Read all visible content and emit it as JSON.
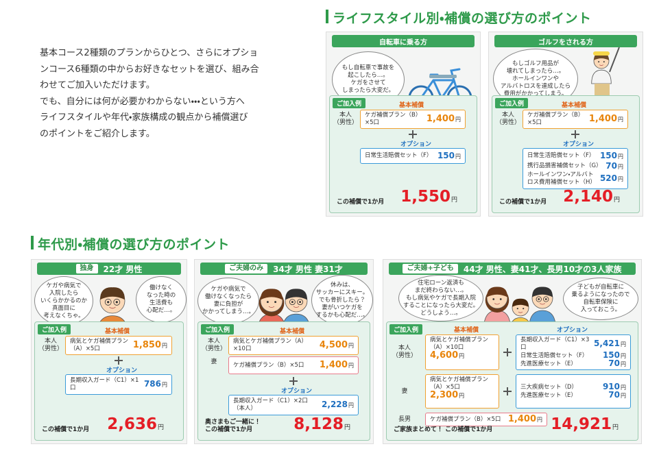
{
  "intro": {
    "lines": [
      "基本コース2種類のプランからひとつ、さらにオプショ",
      "ンコース6種類の中からお好きなセットを選び、組み合",
      "わせてご加入いただけます。",
      "でも、自分には何が必要かわからない・・・という方へ",
      "ライフスタイルや年代・家族構成の観点から補償選び",
      "のポイントをご紹介します。"
    ]
  },
  "labels": {
    "example": "ご加入例",
    "basic": "基本補償",
    "option": "オプション",
    "yen": "円"
  },
  "lifestyle": {
    "title": "ライフスタイル別・補償の選び方のポイント",
    "cards": [
      {
        "header": "自転車に乗る方",
        "bubbles": [
          [
            "もし自転車で事故を",
            "起こしたら…。",
            "ケガをさせて",
            "しまったら大変だ。"
          ]
        ],
        "rows": [
          {
            "person": [
              "本人",
              "（男性）"
            ],
            "plan": {
              "name": "ケガ補償プラン（B）×5口",
              "price": "1,400"
            }
          }
        ],
        "options": [
          {
            "name": "日常生活賠償セット（F）",
            "price": "150"
          }
        ],
        "total_label": [
          "この補償で1か月"
        ],
        "total": "1,550"
      },
      {
        "header": "ゴルフをされる方",
        "bubbles": [
          [
            "もしゴルフ用品が",
            "壊れてしまったら…。",
            "ホールインワンや",
            "アルバトロスを達成したら",
            "費用がかかってしまう。"
          ]
        ],
        "rows": [
          {
            "person": [
              "本人",
              "（男性）"
            ],
            "plan": {
              "name": "ケガ補償プラン（B）×5口",
              "price": "1,400"
            }
          }
        ],
        "options": [
          {
            "name": "日常生活賠償セット（F）",
            "price": "150"
          },
          {
            "name": "携行品損害補償セット（G）",
            "price": "70"
          },
          {
            "name": "ホールインワン・アルバトロス費用補償セット（H）",
            "price": "520"
          }
        ],
        "total_label": [
          "この補償で1か月"
        ],
        "total": "2,140"
      }
    ]
  },
  "age": {
    "title": "年代別・補償の選び方のポイント",
    "cards": [
      {
        "tag": "独身",
        "info": "22才 男性",
        "bubbles": [
          [
            "ケガや病気で",
            "入院したら",
            "いくらかかるのか",
            "真面目に",
            "考えなくちゃ。"
          ],
          [
            "働けなく",
            "なった時の",
            "生活費も",
            "心配だ…。"
          ]
        ],
        "rows": [
          {
            "person": [
              "本人",
              "（男性）"
            ],
            "plan": {
              "name": "病気とケガ補償プラン（A）×5口",
              "price": "1,850"
            }
          }
        ],
        "options": [
          {
            "name": "長期収入ガード（C1）×1口",
            "price": "786"
          }
        ],
        "total_label": [
          "この補償で1か月"
        ],
        "total": "2,636"
      },
      {
        "tag": "ご夫婦のみ",
        "info": "34才 男性 妻31才",
        "bubbles": [
          [
            "ケガや病気で",
            "働けなくなったら",
            "妻に負担が",
            "かかってしまう…。"
          ],
          [
            "休みは、",
            "サッカーにスキー。",
            "でも骨折したら？",
            "妻がいつケガを",
            "するかも心配だ…。"
          ]
        ],
        "rows": [
          {
            "person": [
              "本人",
              "（男性）"
            ],
            "plan": {
              "name": "病気とケガ補償プラン（A）×10口",
              "price": "4,500"
            }
          },
          {
            "person": [
              "妻"
            ],
            "plan": {
              "name": "ケガ補償プラン（B）×5口",
              "price": "1,400"
            }
          }
        ],
        "options": [
          {
            "name": "長期収入ガード（C1）×2口（本人）",
            "price": "2,228"
          }
        ],
        "total_label": [
          "奥さまもご一緒に！",
          "この補償で1か月"
        ],
        "total": "8,128"
      },
      {
        "tag": "ご夫婦+子ども",
        "info": "44才 男性、妻41才、長男10才の3人家族",
        "bubbles": [
          [
            "住宅ローン返済も",
            "まだ終わらない…。",
            "もし病気やケガで長期入院",
            "することになったら大変だ。",
            "どうしよう…。"
          ],
          [
            "子どもが自転車に",
            "乗るようになったので",
            "自転車保険に",
            "入っておこう。"
          ]
        ],
        "rows": [
          {
            "person": [
              "本人",
              "（男性）"
            ],
            "plan": {
              "name": "病気とケガ補償プラン（A）×10口",
              "price": "4,600"
            },
            "options": [
              {
                "name": "長期収入ガード（C1）×3口",
                "price": "5,421"
              },
              {
                "name": "日常生活賠償セット（F）",
                "price": "150"
              },
              {
                "name": "先進医療セット（E）",
                "price": "70"
              }
            ]
          },
          {
            "person": [
              "妻"
            ],
            "plan": {
              "name": "病気とケガ補償プラン（A）×5口",
              "price": "2,300"
            },
            "options": [
              {
                "name": "三大疾病セット（D）",
                "price": "910"
              },
              {
                "name": "先進医療セット（E）",
                "price": "70"
              }
            ]
          },
          {
            "person": [
              "長男"
            ],
            "plan": {
              "name": "ケガ補償プラン（B）×5口",
              "price": "1,400"
            }
          }
        ],
        "total_label": [
          "ご家族まとめて！ この補償で1か月"
        ],
        "total": "14,921"
      }
    ]
  }
}
